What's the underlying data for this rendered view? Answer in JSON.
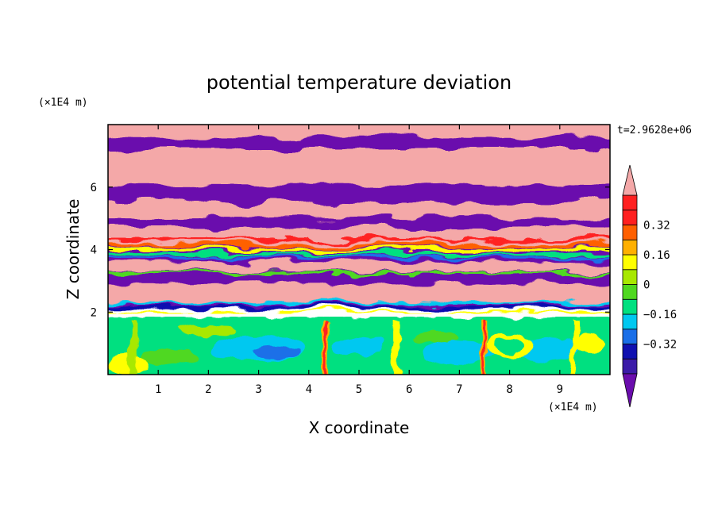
{
  "chart_data": {
    "type": "heatmap",
    "title": "potential temperature deviation",
    "xlabel": "X coordinate",
    "ylabel": "Z coordinate",
    "x_unit": "(×1E4 m)",
    "y_unit": "(×1E4 m)",
    "time_label": "t=2.9628e+06",
    "xlim": [
      0,
      10
    ],
    "ylim": [
      0,
      8
    ],
    "x_ticks": [
      {
        "value": 1,
        "label": "1"
      },
      {
        "value": 2,
        "label": "2"
      },
      {
        "value": 3,
        "label": "3"
      },
      {
        "value": 4,
        "label": "4"
      },
      {
        "value": 5,
        "label": "5"
      },
      {
        "value": 6,
        "label": "6"
      },
      {
        "value": 7,
        "label": "7"
      },
      {
        "value": 8,
        "label": "8"
      },
      {
        "value": 9,
        "label": "9"
      }
    ],
    "y_ticks": [
      {
        "value": 2,
        "label": "2"
      },
      {
        "value": 4,
        "label": "4"
      },
      {
        "value": 6,
        "label": "6"
      }
    ],
    "colorbar": {
      "levels": [
        -0.48,
        -0.4,
        -0.32,
        -0.24,
        -0.16,
        -0.08,
        0,
        0.08,
        0.16,
        0.24,
        0.32,
        0.4,
        0.48
      ],
      "colors": [
        "#6a0dad",
        "#3b1ba8",
        "#1010b0",
        "#1a6fe8",
        "#00c8f0",
        "#00e080",
        "#4fd820",
        "#a8e800",
        "#ffff00",
        "#ffb000",
        "#ff6000",
        "#ff2020",
        "#f4a8a8"
      ],
      "labels": [
        {
          "value": -0.32,
          "label": "−0.32"
        },
        {
          "value": -0.16,
          "label": "−0.16"
        },
        {
          "value": 0,
          "label": "0"
        },
        {
          "value": 0.16,
          "label": "0.16"
        },
        {
          "value": 0.32,
          "label": "0.32"
        }
      ]
    },
    "grid": false,
    "legend": "colorbar-right"
  }
}
